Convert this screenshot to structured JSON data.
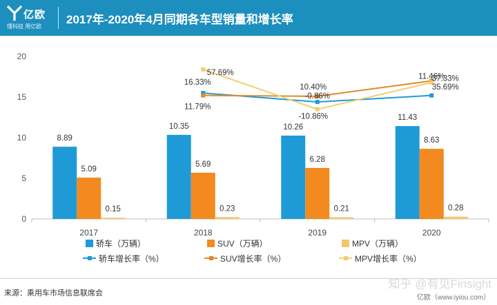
{
  "header": {
    "logo_name": "亿欧",
    "logo_tagline": "懂科技 用亿欧",
    "title": "2017年-2020年4月同期各车型销量和增长率"
  },
  "colors": {
    "header_bg": "#1d8fbe",
    "sedan": "#1e9bd7",
    "suv": "#f28a1f",
    "mpv": "#f2c76e",
    "sedan_growth": "#1e9bd7",
    "suv_growth": "#e0892a",
    "mpv_growth": "#f0cf70"
  },
  "chart_data": {
    "type": "bar",
    "categories": [
      "2017",
      "2018",
      "2019",
      "2020"
    ],
    "ylim": [
      0,
      20
    ],
    "yticks": [
      "0",
      "5",
      "10",
      "15",
      "20"
    ],
    "series": [
      {
        "name": "轿车（万辆）",
        "values": [
          8.89,
          10.35,
          10.26,
          11.43
        ],
        "labels": [
          "8.89",
          "10.35",
          "10.26",
          "11.43"
        ]
      },
      {
        "name": "SUV（万辆）",
        "values": [
          5.09,
          5.69,
          6.28,
          8.63
        ],
        "labels": [
          "5.09",
          "5.69",
          "6.28",
          "8.63"
        ]
      },
      {
        "name": "MPV（万辆）",
        "values": [
          0.15,
          0.23,
          0.21,
          0.28
        ],
        "labels": [
          "0.15",
          "0.23",
          "0.21",
          "0.28"
        ]
      }
    ],
    "line_series": [
      {
        "name": "轿车增长率（%）",
        "values": [
          null,
          15.5,
          14.4,
          15.2
        ],
        "labels": [
          null,
          "16.33%",
          "-0.86%",
          "11.46%"
        ]
      },
      {
        "name": "SUV增长率（%）",
        "values": [
          null,
          15.2,
          15.1,
          17.0
        ],
        "labels": [
          null,
          "11.79%",
          "10.40%",
          "37.33%"
        ]
      },
      {
        "name": "MPV增长率（%）",
        "values": [
          null,
          18.4,
          13.5,
          16.8
        ],
        "labels": [
          null,
          "57.69%",
          "-10.86%",
          "35.69%"
        ]
      }
    ]
  },
  "footer": {
    "source": "来源：乘用车市场信息联席会",
    "watermark": "知乎 @有见Finsight",
    "website": "亿欧（www.iyiou.com）"
  }
}
